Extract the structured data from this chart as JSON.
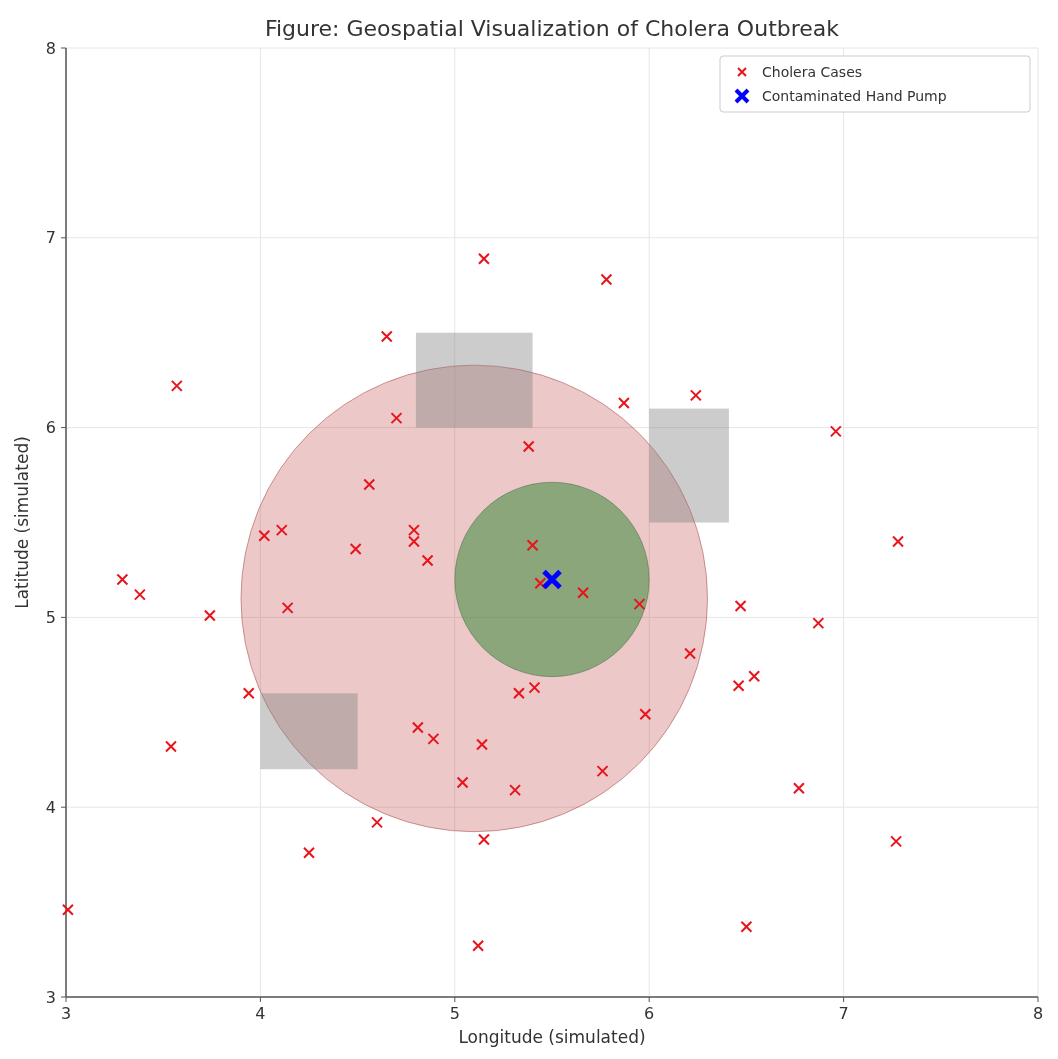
{
  "chart_data": {
    "type": "scatter",
    "title": "Figure: Geospatial Visualization of Cholera Outbreak",
    "xlabel": "Longitude (simulated)",
    "ylabel": "Latitude (simulated)",
    "xlim": [
      3,
      8
    ],
    "ylim": [
      3,
      8
    ],
    "xticks": [
      3,
      4,
      5,
      6,
      7,
      8
    ],
    "yticks": [
      3,
      4,
      5,
      6,
      7,
      8
    ],
    "grid": true,
    "legend": "top right",
    "series": [
      {
        "name": "Cholera Cases",
        "color": "#e8141c",
        "marker": "cross",
        "x": [
          5.15,
          5.78,
          4.65,
          3.57,
          5.87,
          6.24,
          4.7,
          5.38,
          6.96,
          4.56,
          4.02,
          4.11,
          4.49,
          4.79,
          4.79,
          4.86,
          5.4,
          7.28,
          3.29,
          3.38,
          3.74,
          4.14,
          5.44,
          5.66,
          5.95,
          6.47,
          6.87,
          6.21,
          3.94,
          5.33,
          5.41,
          6.46,
          6.54,
          5.98,
          4.81,
          4.89,
          3.54,
          5.14,
          5.76,
          5.04,
          5.31,
          6.77,
          4.6,
          5.15,
          4.25,
          7.27,
          3.01,
          6.5,
          5.12
        ],
        "values": [
          6.89,
          6.78,
          6.48,
          6.22,
          6.13,
          6.17,
          6.05,
          5.9,
          5.98,
          5.7,
          5.43,
          5.46,
          5.36,
          5.46,
          5.4,
          5.3,
          5.38,
          5.4,
          5.2,
          5.12,
          5.01,
          5.05,
          5.18,
          5.13,
          5.07,
          5.06,
          4.97,
          4.81,
          4.6,
          4.6,
          4.63,
          4.64,
          4.69,
          4.49,
          4.42,
          4.36,
          4.32,
          4.33,
          4.19,
          4.13,
          4.09,
          4.1,
          3.92,
          3.83,
          3.76,
          3.82,
          3.46,
          3.37,
          3.27
        ]
      },
      {
        "name": "Contaminated Hand Pump",
        "color": "#0000ff",
        "marker": "cross",
        "x": [
          5.5
        ],
        "values": [
          5.2
        ]
      }
    ]
  }
}
